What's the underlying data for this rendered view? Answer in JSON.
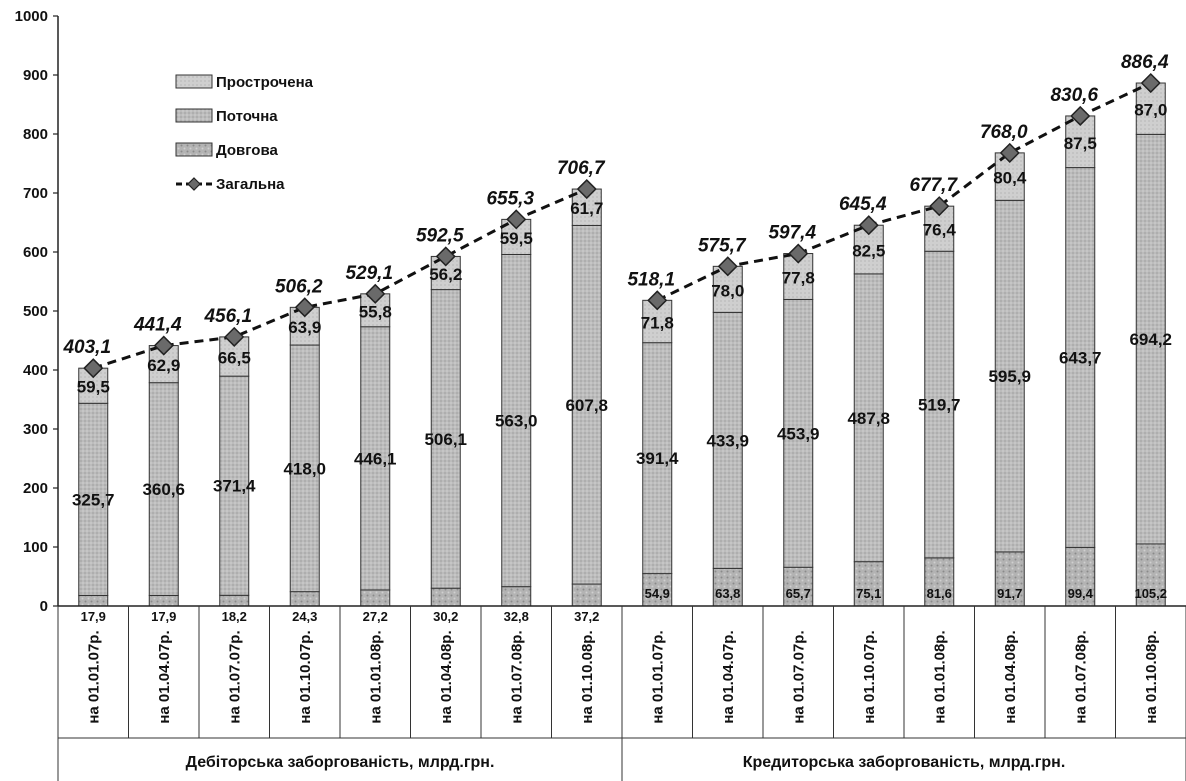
{
  "chart_data": {
    "type": "bar",
    "stacked": true,
    "ylim": [
      0,
      1000
    ],
    "yticks": [
      0,
      100,
      200,
      300,
      400,
      500,
      600,
      700,
      800,
      900,
      1000
    ],
    "grid": false,
    "legend_position": "top-left",
    "categories": [
      "на 01.01.07р.",
      "на 01.04.07р.",
      "на 01.07.07р.",
      "на 01.10.07р.",
      "на 01.01.08р.",
      "на 01.04.08р.",
      "на 01.07.08р.",
      "на 01.10.08р.",
      "на 01.01.07р.",
      "на 01.04.07р.",
      "на 01.07.07р.",
      "на 01.10.07р.",
      "на 01.01.08р.",
      "на 01.04.08р.",
      "на 01.07.08р.",
      "на 01.10.08р."
    ],
    "groups": [
      {
        "label": "Дебіторська заборгованість, млрд.грн.",
        "from": 0,
        "to": 7
      },
      {
        "label": "Кредиторська заборгованість, млрд.грн.",
        "from": 8,
        "to": 15
      }
    ],
    "series": [
      {
        "name": "Довгова",
        "values": [
          17.9,
          17.9,
          18.2,
          24.3,
          27.2,
          30.2,
          32.8,
          37.2,
          54.9,
          63.8,
          65.7,
          75.1,
          81.6,
          91.7,
          99.4,
          105.2
        ],
        "labels": [
          "17,9",
          "17,9",
          "18,2",
          "24,3",
          "27,2",
          "30,2",
          "32,8",
          "37,2",
          "54,9",
          "63,8",
          "65,7",
          "75,1",
          "81,6",
          "91,7",
          "99,4",
          "105,2"
        ]
      },
      {
        "name": "Поточна",
        "values": [
          325.7,
          360.6,
          371.4,
          418.0,
          446.1,
          506.1,
          563.0,
          607.8,
          391.4,
          433.9,
          453.9,
          487.8,
          519.7,
          595.9,
          643.7,
          694.2
        ],
        "labels": [
          "325,7",
          "360,6",
          "371,4",
          "418,0",
          "446,1",
          "506,1",
          "563,0",
          "607,8",
          "391,4",
          "433,9",
          "453,9",
          "487,8",
          "519,7",
          "595,9",
          "643,7",
          "694,2"
        ]
      },
      {
        "name": "Прострочена",
        "values": [
          59.5,
          62.9,
          66.5,
          63.9,
          55.8,
          56.2,
          59.5,
          61.7,
          71.8,
          78.0,
          77.8,
          82.5,
          76.4,
          80.4,
          87.5,
          87.0
        ],
        "labels": [
          "59,5",
          "62,9",
          "66,5",
          "63,9",
          "55,8",
          "56,2",
          "59,5",
          "61,7",
          "71,8",
          "78,0",
          "77,8",
          "82,5",
          "76,4",
          "80,4",
          "87,5",
          "87,0"
        ]
      },
      {
        "name": "Загальна",
        "type": "line",
        "style": "dashed",
        "marker": "diamond",
        "values": [
          403.1,
          441.4,
          456.1,
          506.2,
          529.1,
          592.5,
          655.3,
          706.7,
          518.1,
          575.7,
          597.4,
          645.4,
          677.7,
          768.0,
          830.6,
          886.4
        ],
        "labels": [
          "403,1",
          "441,4",
          "456,1",
          "506,2",
          "529,1",
          "592,5",
          "655,3",
          "706,7",
          "518,1",
          "575,7",
          "597,4",
          "645,4",
          "677,7",
          "768,0",
          "830,6",
          "886,4"
        ]
      }
    ],
    "legend": [
      "Прострочена",
      "Поточна",
      "Довгова",
      "Загальна"
    ]
  },
  "colors": {
    "dovgova": "#a6a6a6",
    "potochna": "#b9b9b9",
    "prostrochena": "#cdcdcd",
    "line": "#111111",
    "marker": "#6a6a6a"
  }
}
